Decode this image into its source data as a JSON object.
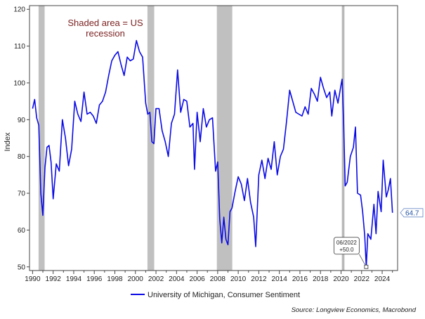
{
  "chart_data": {
    "type": "line",
    "title": "",
    "xlabel": "",
    "ylabel": "Index",
    "xlim": [
      1989.7,
      2025.5
    ],
    "ylim": [
      49,
      121
    ],
    "yticks": [
      50,
      60,
      70,
      80,
      90,
      100,
      110,
      120
    ],
    "xticks": [
      1990,
      1992,
      1994,
      1996,
      1998,
      2000,
      2002,
      2004,
      2006,
      2008,
      2010,
      2012,
      2014,
      2016,
      2018,
      2020,
      2022,
      2024
    ],
    "grid": false,
    "legend_position": "bottom-center",
    "annotation_text": [
      "Shaded area = US",
      "recession"
    ],
    "recessions": [
      [
        1990.58,
        1991.17
      ],
      [
        2001.17,
        2001.83
      ],
      [
        2007.92,
        2009.42
      ],
      [
        2020.08,
        2020.33
      ]
    ],
    "series": [
      {
        "name": "University of Michigan, Consumer Sentiment",
        "color": "#0a0ae6",
        "x": [
          1990.0,
          1990.2,
          1990.4,
          1990.6,
          1990.8,
          1991.0,
          1991.2,
          1991.4,
          1991.6,
          1991.8,
          1992.0,
          1992.3,
          1992.6,
          1992.9,
          1993.2,
          1993.5,
          1993.8,
          1994.1,
          1994.4,
          1994.7,
          1995.0,
          1995.3,
          1995.6,
          1995.9,
          1996.2,
          1996.5,
          1996.8,
          1997.1,
          1997.4,
          1997.7,
          1998.0,
          1998.3,
          1998.6,
          1998.9,
          1999.2,
          1999.5,
          1999.8,
          2000.1,
          2000.4,
          2000.7,
          2001.0,
          2001.2,
          2001.4,
          2001.6,
          2001.8,
          2002.0,
          2002.3,
          2002.6,
          2002.9,
          2003.2,
          2003.5,
          2003.8,
          2004.1,
          2004.4,
          2004.7,
          2005.0,
          2005.3,
          2005.6,
          2005.75,
          2006.0,
          2006.3,
          2006.6,
          2006.9,
          2007.2,
          2007.5,
          2007.8,
          2008.0,
          2008.2,
          2008.4,
          2008.6,
          2008.8,
          2009.0,
          2009.2,
          2009.4,
          2009.7,
          2010.0,
          2010.3,
          2010.6,
          2010.9,
          2011.2,
          2011.5,
          2011.7,
          2012.0,
          2012.3,
          2012.6,
          2012.9,
          2013.2,
          2013.5,
          2013.8,
          2014.1,
          2014.4,
          2014.7,
          2015.0,
          2015.3,
          2015.6,
          2015.9,
          2016.2,
          2016.5,
          2016.8,
          2017.1,
          2017.4,
          2017.7,
          2018.0,
          2018.3,
          2018.6,
          2018.9,
          2019.1,
          2019.4,
          2019.7,
          2020.0,
          2020.1,
          2020.25,
          2020.4,
          2020.6,
          2020.9,
          2021.2,
          2021.4,
          2021.6,
          2021.9,
          2022.1,
          2022.3,
          2022.45,
          2022.6,
          2022.9,
          2023.2,
          2023.4,
          2023.6,
          2023.9,
          2024.1,
          2024.4,
          2024.6,
          2024.8,
          2025.0
        ],
        "values": [
          93.0,
          95.5,
          90.5,
          88.5,
          70.0,
          64.0,
          77.0,
          82.5,
          83.0,
          78.5,
          68.5,
          78.0,
          76.0,
          90.0,
          85.0,
          77.5,
          82.0,
          95.0,
          91.5,
          89.5,
          97.5,
          91.5,
          92.0,
          91.0,
          89.0,
          94.0,
          95.0,
          97.5,
          102.0,
          106.0,
          107.5,
          108.5,
          105.0,
          102.0,
          107.0,
          106.0,
          106.5,
          111.5,
          108.5,
          107.0,
          94.5,
          91.5,
          92.0,
          84.0,
          83.5,
          93.0,
          93.0,
          87.0,
          84.0,
          80.0,
          89.0,
          91.5,
          103.5,
          92.0,
          95.5,
          95.0,
          88.0,
          89.0,
          76.5,
          92.0,
          84.0,
          93.0,
          88.0,
          90.0,
          90.5,
          76.0,
          78.5,
          63.0,
          56.5,
          63.5,
          57.5,
          56.0,
          65.0,
          66.0,
          70.5,
          74.5,
          72.5,
          68.0,
          74.0,
          67.5,
          63.5,
          55.5,
          75.0,
          79.0,
          74.0,
          79.5,
          76.5,
          84.0,
          75.0,
          80.0,
          82.0,
          89.5,
          98.0,
          95.0,
          92.0,
          91.5,
          91.0,
          93.5,
          91.5,
          98.5,
          97.0,
          95.0,
          101.5,
          98.5,
          96.0,
          97.5,
          91.0,
          98.0,
          94.5,
          99.5,
          101.0,
          89.0,
          72.0,
          73.0,
          80.0,
          82.5,
          88.0,
          70.0,
          69.5,
          65.0,
          58.5,
          50.0,
          59.0,
          57.5,
          67.0,
          59.0,
          70.5,
          65.0,
          79.0,
          69.0,
          71.0,
          74.0,
          64.7
        ]
      }
    ],
    "callout": {
      "date_label": "06/2022",
      "change_label": "+50.0",
      "x": 2022.45,
      "y": 50.0
    },
    "last_value_label": "64.7",
    "last_value": 64.7
  },
  "source": "Source: Longview Economics, Macrobond"
}
